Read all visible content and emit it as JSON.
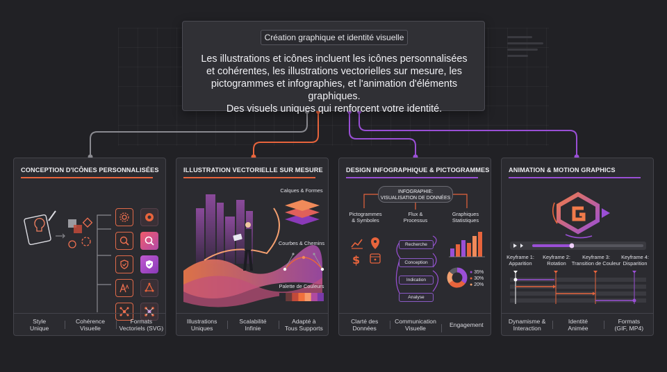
{
  "header": {
    "title": "Création graphique et identité visuelle",
    "description_lines": [
      "Les illustrations et icônes incluent les icônes personnalisées",
      "et cohérentes, les illustrations vectorielles sur mesure, les",
      "pictogrammes et infographies, et l'animation d'éléments graphiques.",
      "Des visuels uniques qui renforcent votre identité."
    ]
  },
  "colors": {
    "accent_orange": "#e8643c",
    "accent_purple": "#9a4fd6",
    "connector_gray": "#8a8a90",
    "card_bg": "#2b2b30",
    "page_bg": "#212125"
  },
  "cards": [
    {
      "title": "CONCEPTION D'ICÔNES PERSONNALISÉES",
      "icons": [
        "lightbulb-notebook-icon",
        "shapes-icon",
        "gear-icon",
        "search-icon",
        "shield-check-icon",
        "typography-icon",
        "network-icon"
      ],
      "footer": [
        [
          "Style",
          "Unique"
        ],
        [
          "Cohérence",
          "Visuelle"
        ],
        [
          "Formats",
          "Vectoriels (SVG)"
        ]
      ]
    },
    {
      "title": "ILLUSTRATION VECTORIELLE SUR MESURE",
      "labels": {
        "layers": "Calques & Formes",
        "curves": "Courbes & Chemins",
        "palette": "Palette de Couleurs"
      },
      "palette": [
        "#2a2a30",
        "#6a3a3a",
        "#c24a3a",
        "#f0703c",
        "#f59a6a",
        "#b04aa0",
        "#7a3aa8"
      ],
      "footer": [
        [
          "Illustrations",
          "Uniques"
        ],
        [
          "Scalabilité",
          "Infinie"
        ],
        [
          "Adapté à",
          "Tous Supports"
        ]
      ]
    },
    {
      "title": "DESIGN INFOGRAPHIQUE & PICTOGRAMMES",
      "pill": [
        "INFOGRAPHIE:",
        "VISUALISATION DE DONNÉES"
      ],
      "columns": [
        [
          "Pictogrammes",
          "& Symboles"
        ],
        [
          "Flux &",
          "Processus"
        ],
        [
          "Graphiques",
          "Statistiques"
        ]
      ],
      "flow": [
        "Recherche",
        "Conception",
        "Indication",
        "Analyse"
      ],
      "donut_legend": [
        "35%",
        "30%",
        "20%"
      ],
      "footer": [
        [
          "Clarté des",
          "Données"
        ],
        [
          "Communication",
          "Visuelle"
        ],
        [
          "Engagement"
        ]
      ]
    },
    {
      "title": "ANIMATION & MOTION GRAPHICS",
      "keyframes": [
        [
          "Keyframe 1:",
          "Apparition"
        ],
        [
          "Keyframe 2:",
          "Rotation"
        ],
        [
          "Keyframe 3:",
          "Transition de Couleur"
        ],
        [
          "Keyframe 4:",
          "Disparition"
        ]
      ],
      "footer": [
        [
          "Dynamisme &",
          "Interaction"
        ],
        [
          "Identité",
          "Animée"
        ],
        [
          "Formats",
          "(GIF, MP4)"
        ]
      ]
    }
  ]
}
